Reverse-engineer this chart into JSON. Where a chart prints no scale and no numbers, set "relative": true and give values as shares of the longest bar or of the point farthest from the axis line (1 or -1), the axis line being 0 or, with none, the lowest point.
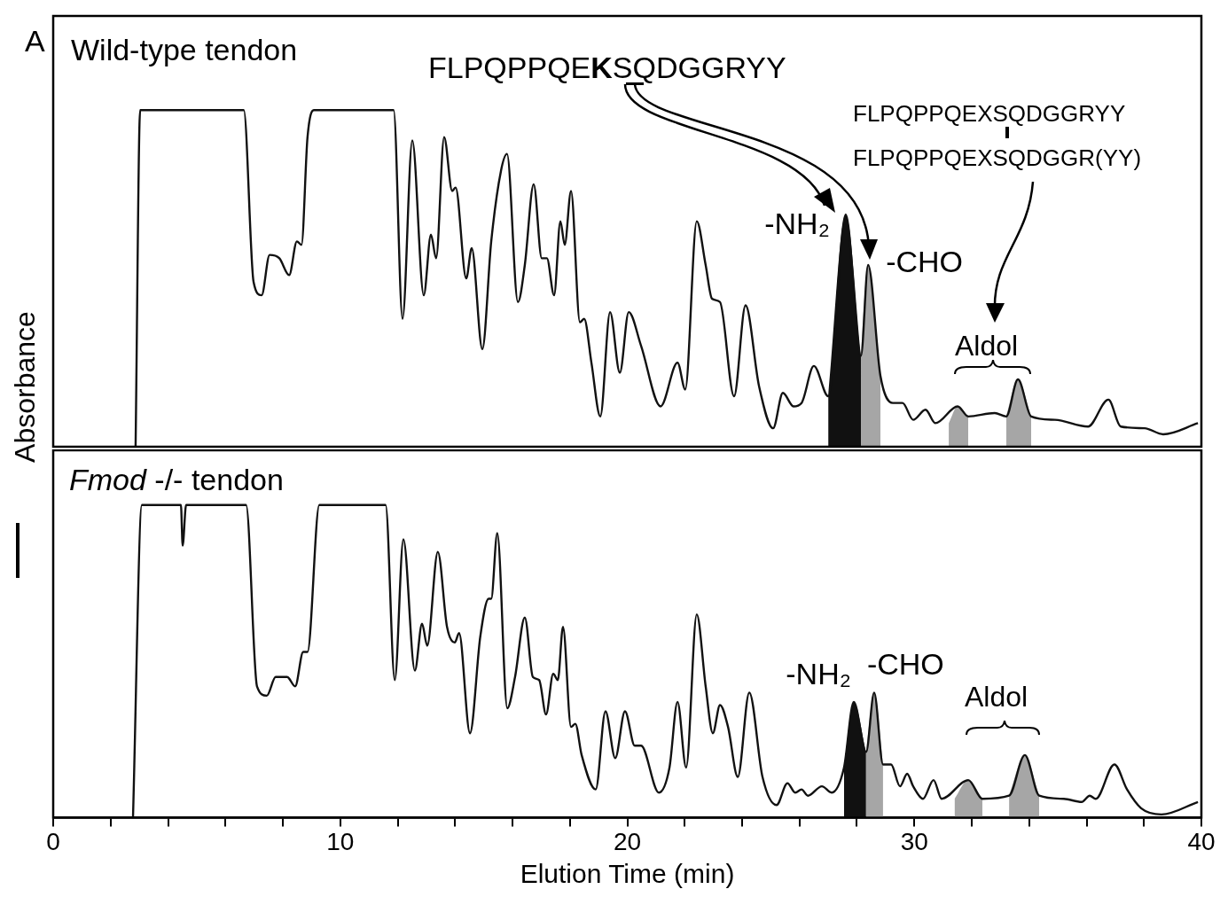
{
  "chart_data": [
    {
      "type": "line",
      "title": "Wild-type tendon",
      "ylabel": "Absorbance",
      "relative": true,
      "xlim": [
        0,
        40
      ],
      "tick_labels": false,
      "annotations": [
        "A",
        "FLPQPPQEKSQDGGRYY",
        "FLPQPPQEXSQDGGRYY",
        "FLPQPPQEXSQDGGR(YY)",
        {
          "text": "-NH₂",
          "x": 27.61,
          "y": 0.69
        },
        {
          "text": "-CHO",
          "x": 28.39,
          "y": 0.54
        },
        "Aldol"
      ],
      "series": [
        {
          "type": "line",
          "color": "#111111",
          "x": [
            2.87,
            3.03,
            6.64,
            6.98,
            7.26,
            7.54,
            7.88,
            8.22,
            8.49,
            8.65,
            8.86,
            9.08,
            11.86,
            12.17,
            12.51,
            12.91,
            13.16,
            13.34,
            13.62,
            13.9,
            14.02,
            14.39,
            14.58,
            14.95,
            15.26,
            15.6,
            15.81,
            16.19,
            16.43,
            16.74,
            17.02,
            17.2,
            17.45,
            17.67,
            17.82,
            18.04,
            18.35,
            18.5,
            18.75,
            19.06,
            19.4,
            19.74,
            20.05,
            20.48,
            21.16,
            21.75,
            22.02,
            22.42,
            22.73,
            22.95,
            23.23,
            23.72,
            24.12,
            24.59,
            25.08,
            25.42,
            25.79,
            26.07,
            26.5,
            27.0,
            27.61,
            28.14,
            28.39,
            28.82,
            29.25,
            29.59,
            29.96,
            30.39,
            30.73,
            31.51,
            31.88,
            32.8,
            33.2,
            33.61,
            34.07,
            34.9,
            36.05,
            36.76,
            37.19,
            38.02,
            38.67,
            39.88
          ],
          "values": [
            0,
            1,
            1,
            0.49,
            0.45,
            0.57,
            0.56,
            0.51,
            0.61,
            0.6,
            0.92,
            1,
            1,
            0.38,
            0.91,
            0.45,
            0.63,
            0.56,
            0.92,
            0.76,
            0.77,
            0.5,
            0.59,
            0.29,
            0.61,
            0.82,
            0.87,
            0.43,
            0.54,
            0.78,
            0.56,
            0.56,
            0.45,
            0.67,
            0.6,
            0.76,
            0.37,
            0.38,
            0.25,
            0.09,
            0.4,
            0.22,
            0.4,
            0.3,
            0.12,
            0.25,
            0.17,
            0.67,
            0.54,
            0.44,
            0.43,
            0.15,
            0.42,
            0.18,
            0.055,
            0.16,
            0.12,
            0.13,
            0.24,
            0.15,
            0.69,
            0.27,
            0.54,
            0.21,
            0.13,
            0.13,
            0.08,
            0.11,
            0.07,
            0.12,
            0.09,
            0.1,
            0.09,
            0.2,
            0.09,
            0.08,
            0.06,
            0.14,
            0.06,
            0.055,
            0.037,
            0.07
          ]
        },
        {
          "type": "area",
          "color": "#111111",
          "x": [
            27.0,
            27.61,
            28.14
          ],
          "values": [
            0.15,
            0.69,
            0.27
          ]
        },
        {
          "type": "area",
          "color": "#a6a6a6",
          "x": [
            28.14,
            28.39,
            28.82
          ],
          "values": [
            0.27,
            0.54,
            0.21
          ]
        },
        {
          "type": "area",
          "color": "#a6a6a6",
          "x": [
            31.2,
            31.51,
            31.88
          ],
          "values": [
            0.07,
            0.12,
            0.09
          ]
        },
        {
          "type": "area",
          "color": "#a6a6a6",
          "x": [
            33.2,
            33.61,
            34.07
          ],
          "values": [
            0.09,
            0.2,
            0.09
          ]
        }
      ]
    },
    {
      "type": "line",
      "title": "Fmod -/- tendon",
      "xlabel": "Elution Time (min)",
      "relative": true,
      "xlim": [
        0,
        40
      ],
      "tick_labels": "x",
      "xticks": [
        0,
        {
          "value": 2,
          "label": null
        },
        {
          "value": 4,
          "label": null
        },
        {
          "value": 6,
          "label": null
        },
        {
          "value": 8,
          "label": null
        },
        10,
        {
          "value": 12,
          "label": null
        },
        {
          "value": 14,
          "label": null
        },
        {
          "value": 16,
          "label": null
        },
        {
          "value": 18,
          "label": null
        },
        20,
        {
          "value": 22,
          "label": null
        },
        {
          "value": 24,
          "label": null
        },
        {
          "value": 26,
          "label": null
        },
        {
          "value": 28,
          "label": null
        },
        30,
        {
          "value": 32,
          "label": null
        },
        {
          "value": 34,
          "label": null
        },
        {
          "value": 36,
          "label": null
        },
        {
          "value": 38,
          "label": null
        },
        40
      ],
      "annotations": [
        {
          "text": "-NH₂",
          "x": 27.89,
          "y": 0.37
        },
        {
          "text": "-CHO",
          "x": 28.6,
          "y": 0.4
        },
        "Aldol"
      ],
      "series": [
        {
          "type": "line",
          "color": "#111111",
          "x": [
            2.78,
            3.09,
            4.45,
            4.51,
            4.63,
            6.72,
            7.1,
            7.44,
            7.75,
            8.15,
            8.43,
            8.71,
            8.86,
            9.27,
            11.58,
            11.9,
            12.2,
            12.6,
            12.85,
            13.03,
            13.4,
            13.72,
            13.99,
            14.14,
            14.52,
            14.88,
            15.17,
            15.26,
            15.47,
            15.82,
            16.09,
            16.43,
            16.71,
            16.93,
            17.17,
            17.42,
            17.58,
            17.76,
            18.04,
            18.19,
            18.41,
            18.9,
            19.24,
            19.58,
            19.92,
            20.26,
            20.48,
            21.1,
            21.47,
            21.75,
            22.05,
            22.42,
            22.73,
            22.98,
            23.23,
            23.51,
            23.85,
            24.25,
            24.71,
            25.2,
            25.58,
            25.85,
            26.07,
            26.29,
            26.78,
            27.12,
            27.55,
            27.89,
            28.32,
            28.6,
            28.91,
            29.19,
            29.5,
            29.75,
            29.96,
            30.3,
            30.67,
            30.95,
            31.88,
            32.37,
            33.3,
            33.85,
            34.35,
            35.21,
            35.83,
            36.11,
            36.32,
            36.97,
            37.41,
            37.9,
            38.61,
            39.88
          ],
          "values": [
            0,
            1,
            1,
            0.87,
            1,
            1,
            0.42,
            0.39,
            0.45,
            0.45,
            0.42,
            0.53,
            0.53,
            1,
            1,
            0.44,
            0.89,
            0.47,
            0.62,
            0.55,
            0.85,
            0.61,
            0.56,
            0.59,
            0.27,
            0.58,
            0.7,
            0.7,
            0.91,
            0.35,
            0.45,
            0.64,
            0.45,
            0.44,
            0.33,
            0.46,
            0.44,
            0.61,
            0.29,
            0.3,
            0.2,
            0.09,
            0.34,
            0.19,
            0.34,
            0.23,
            0.23,
            0.08,
            0.16,
            0.37,
            0.16,
            0.65,
            0.42,
            0.27,
            0.36,
            0.29,
            0.13,
            0.4,
            0.13,
            0.04,
            0.11,
            0.08,
            0.09,
            0.07,
            0.1,
            0.08,
            0.16,
            0.37,
            0.21,
            0.4,
            0.17,
            0.17,
            0.1,
            0.14,
            0.1,
            0.06,
            0.12,
            0.06,
            0.12,
            0.06,
            0.07,
            0.2,
            0.07,
            0.06,
            0.05,
            0.07,
            0.06,
            0.17,
            0.09,
            0.03,
            0.01,
            0.05
          ]
        },
        {
          "type": "area",
          "color": "#111111",
          "x": [
            27.55,
            27.89,
            28.32
          ],
          "values": [
            0.16,
            0.37,
            0.21
          ]
        },
        {
          "type": "area",
          "color": "#a6a6a6",
          "x": [
            28.32,
            28.6,
            28.91
          ],
          "values": [
            0.21,
            0.4,
            0.17
          ]
        },
        {
          "type": "area",
          "color": "#a6a6a6",
          "x": [
            31.4,
            31.88,
            32.37
          ],
          "values": [
            0.06,
            0.12,
            0.06
          ]
        },
        {
          "type": "area",
          "color": "#a6a6a6",
          "x": [
            33.3,
            33.85,
            34.35
          ],
          "values": [
            0.07,
            0.2,
            0.07
          ]
        }
      ]
    }
  ]
}
